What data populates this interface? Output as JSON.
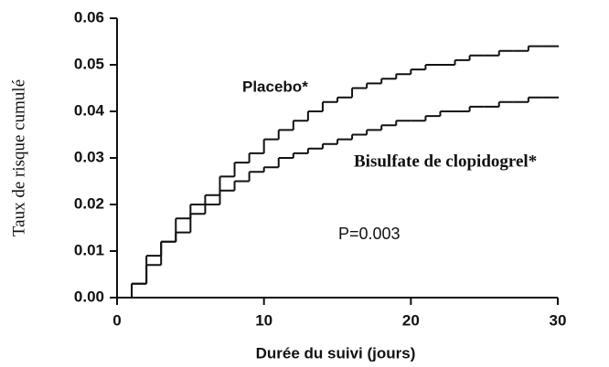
{
  "chart_data": {
    "type": "step",
    "x_label": "Durée du suivi (jours)",
    "y_label": "Taux de risque cumulé",
    "annotations": [
      "P=0.003"
    ],
    "x": [
      0,
      1,
      2,
      3,
      4,
      5,
      6,
      7,
      8,
      9,
      10,
      11,
      12,
      13,
      14,
      15,
      16,
      17,
      18,
      19,
      20,
      21,
      22,
      23,
      24,
      25,
      26,
      27,
      28,
      29,
      30
    ],
    "series": [
      {
        "name": "Placebo*",
        "color": "#111111",
        "values": [
          0,
          0.003,
          0.009,
          0.012,
          0.017,
          0.02,
          0.022,
          0.026,
          0.029,
          0.031,
          0.034,
          0.036,
          0.038,
          0.04,
          0.042,
          0.043,
          0.045,
          0.046,
          0.047,
          0.048,
          0.049,
          0.05,
          0.05,
          0.051,
          0.052,
          0.052,
          0.053,
          0.053,
          0.054,
          0.054,
          0.054
        ]
      },
      {
        "name": "Bisulfate de clopidogrel*",
        "color": "#111111",
        "values": [
          0,
          0.003,
          0.007,
          0.012,
          0.014,
          0.018,
          0.02,
          0.023,
          0.025,
          0.027,
          0.028,
          0.03,
          0.031,
          0.032,
          0.033,
          0.034,
          0.035,
          0.036,
          0.037,
          0.038,
          0.038,
          0.039,
          0.04,
          0.04,
          0.041,
          0.041,
          0.042,
          0.042,
          0.043,
          0.043,
          0.043
        ]
      }
    ],
    "xlim": [
      0,
      30
    ],
    "xticks": [
      0,
      10,
      20,
      30
    ],
    "ylim": [
      0,
      0.06
    ],
    "yticks": [
      {
        "value": 0,
        "label": "0.00"
      },
      0.01,
      0.02,
      0.03,
      0.04,
      0.05,
      0.06
    ],
    "grid": false
  }
}
